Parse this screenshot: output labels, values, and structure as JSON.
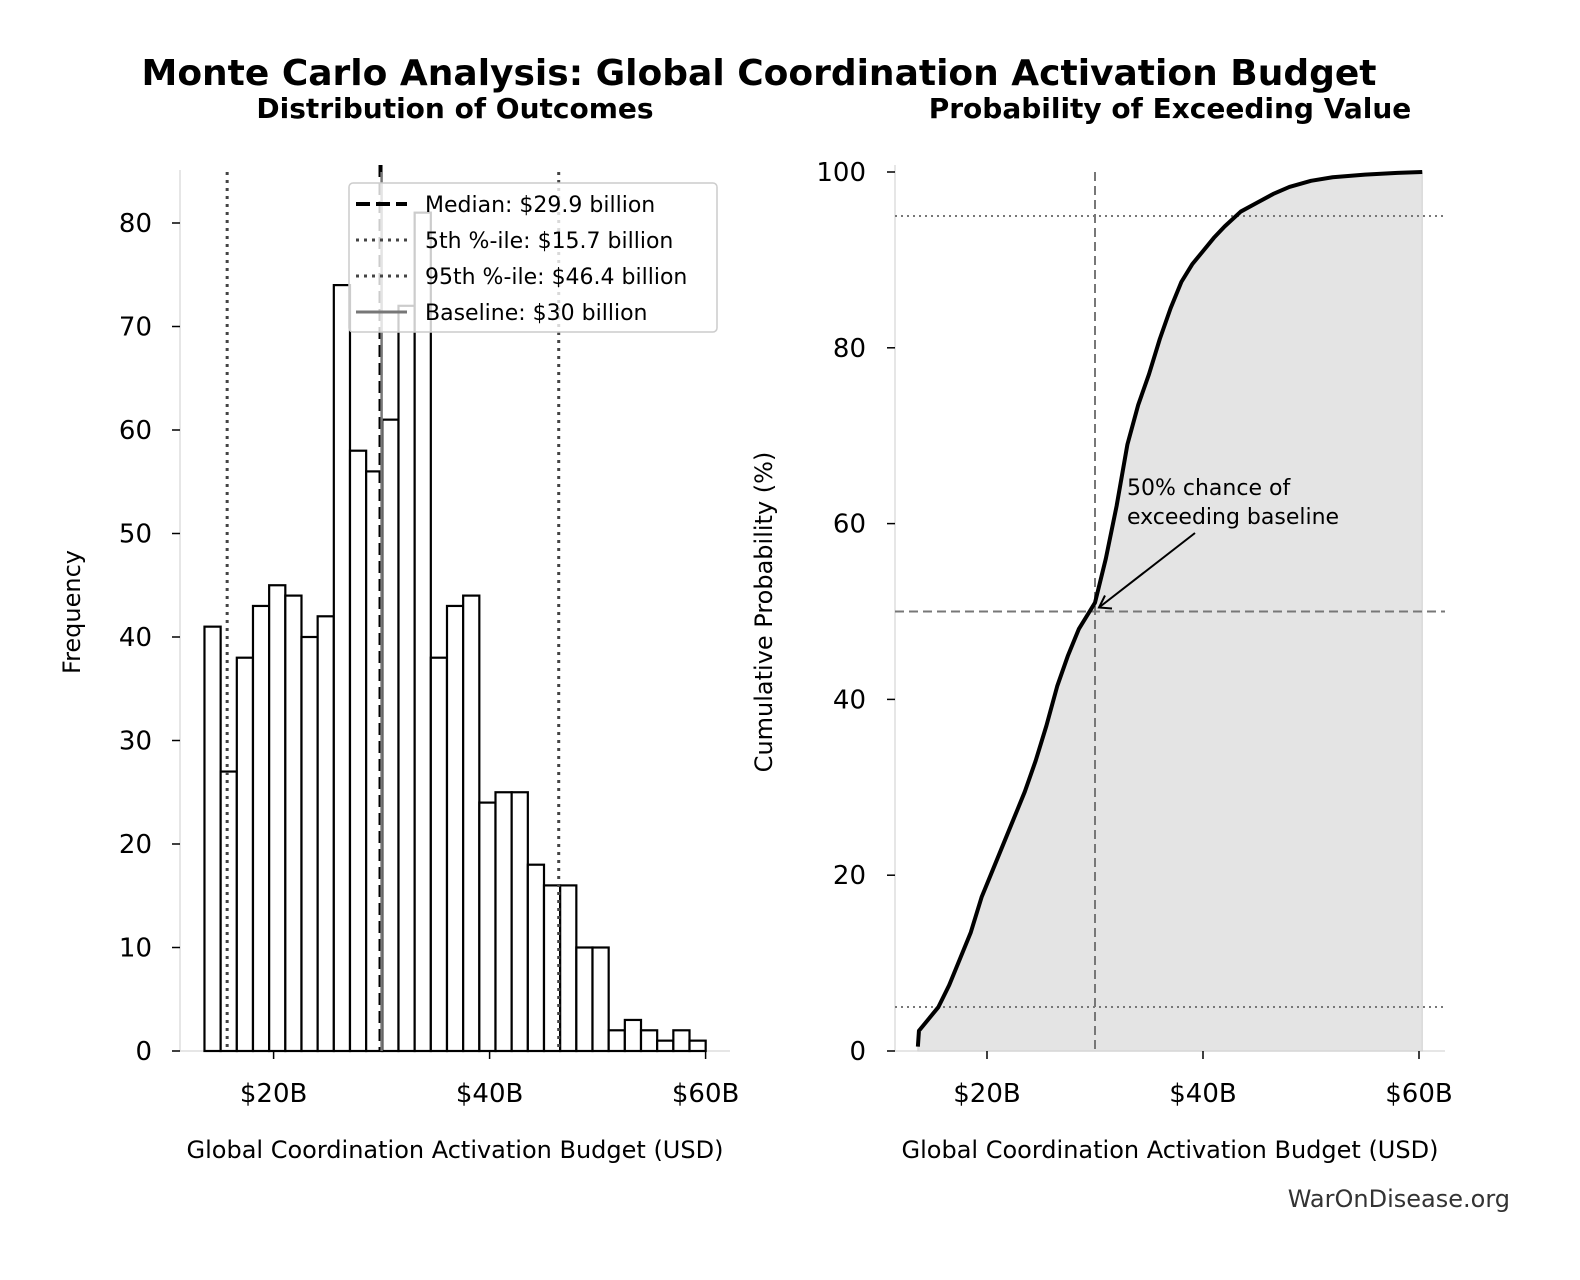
{
  "title": "Monte Carlo Analysis: Global Coordination Activation Budget",
  "watermark": "WarOnDisease.org",
  "chart_data": [
    {
      "type": "bar",
      "subtype": "histogram",
      "title": "Distribution of Outcomes",
      "xlabel": "Global Coordination Activation Budget (USD)",
      "ylabel": "Frequency",
      "xlim": [
        11,
        62.5
      ],
      "ylim": [
        0,
        85
      ],
      "xticks": [
        20,
        40,
        60
      ],
      "xtick_labels": [
        "$20B",
        "$40B",
        "$60B"
      ],
      "yticks": [
        0,
        10,
        20,
        30,
        40,
        50,
        60,
        70,
        80
      ],
      "bin_start": 13.6,
      "bin_width": 1.497,
      "values": [
        41,
        27,
        38,
        43,
        45,
        44,
        40,
        42,
        74,
        58,
        56,
        61,
        72,
        81,
        38,
        43,
        44,
        24,
        25,
        25,
        18,
        16,
        16,
        10,
        10,
        2,
        3,
        2,
        1,
        2,
        1
      ],
      "bar_fill": "#ffffff",
      "bar_edge": "#000000",
      "grid": false,
      "legend_position": "top-right",
      "reference_lines": [
        {
          "label": "Median: $29.9 billion",
          "x": 29.9,
          "style": "dashed",
          "color": "#000000"
        },
        {
          "label": "5th %-ile: $15.7 billion",
          "x": 15.7,
          "style": "dotted",
          "color": "#444444"
        },
        {
          "label": "95th %-ile: $46.4 billion",
          "x": 46.4,
          "style": "dotted",
          "color": "#444444"
        },
        {
          "label": "Baseline: $30 billion",
          "x": 30,
          "style": "solid",
          "color": "#777777"
        }
      ]
    },
    {
      "type": "area",
      "title": "Probability of Exceeding Value",
      "xlabel": "Global Coordination Activation Budget (USD)",
      "ylabel": "Cumulative Probability (%)",
      "xlim": [
        11,
        62.5
      ],
      "ylim": [
        0,
        100
      ],
      "xticks": [
        20,
        40,
        60
      ],
      "xtick_labels": [
        "$20B",
        "$40B",
        "$60B"
      ],
      "yticks": [
        0,
        20,
        40,
        60,
        80,
        100
      ],
      "fill_color": "#e4e4e4",
      "grid": false,
      "x": [
        13.6,
        13.7,
        14.5,
        15.5,
        16.5,
        17.5,
        18.5,
        19.5,
        20.5,
        21.5,
        22.5,
        23.5,
        24.5,
        25.5,
        26.5,
        27.5,
        28.5,
        29.5,
        30.0,
        31.0,
        32.0,
        33.0,
        34.0,
        35.0,
        36.0,
        37.0,
        38.0,
        39.0,
        40.0,
        41.0,
        42.0,
        43.5,
        45.0,
        46.5,
        48.0,
        50.0,
        52.0,
        55.0,
        58.0,
        60.3
      ],
      "y": [
        0.5,
        2.3,
        3.5,
        5.0,
        7.5,
        10.5,
        13.5,
        17.5,
        20.5,
        23.5,
        26.5,
        29.5,
        33.0,
        37.0,
        41.5,
        45.0,
        48.0,
        50.0,
        51.0,
        56.0,
        62.0,
        69.0,
        73.5,
        77.0,
        81.0,
        84.5,
        87.5,
        89.5,
        91.0,
        92.5,
        93.8,
        95.5,
        96.5,
        97.5,
        98.3,
        99.0,
        99.4,
        99.7,
        99.9,
        100
      ],
      "reference_lines": [
        {
          "x": 30,
          "style": "dashed",
          "color": "#777777"
        },
        {
          "y": 50,
          "style": "dashed",
          "color": "#777777"
        },
        {
          "y": 5,
          "style": "dotted",
          "color": "#777777"
        },
        {
          "y": 95,
          "style": "dotted",
          "color": "#777777"
        }
      ],
      "annotation": {
        "lines": [
          "50% chance of",
          "exceeding baseline"
        ],
        "point": [
          30,
          50
        ]
      }
    }
  ]
}
